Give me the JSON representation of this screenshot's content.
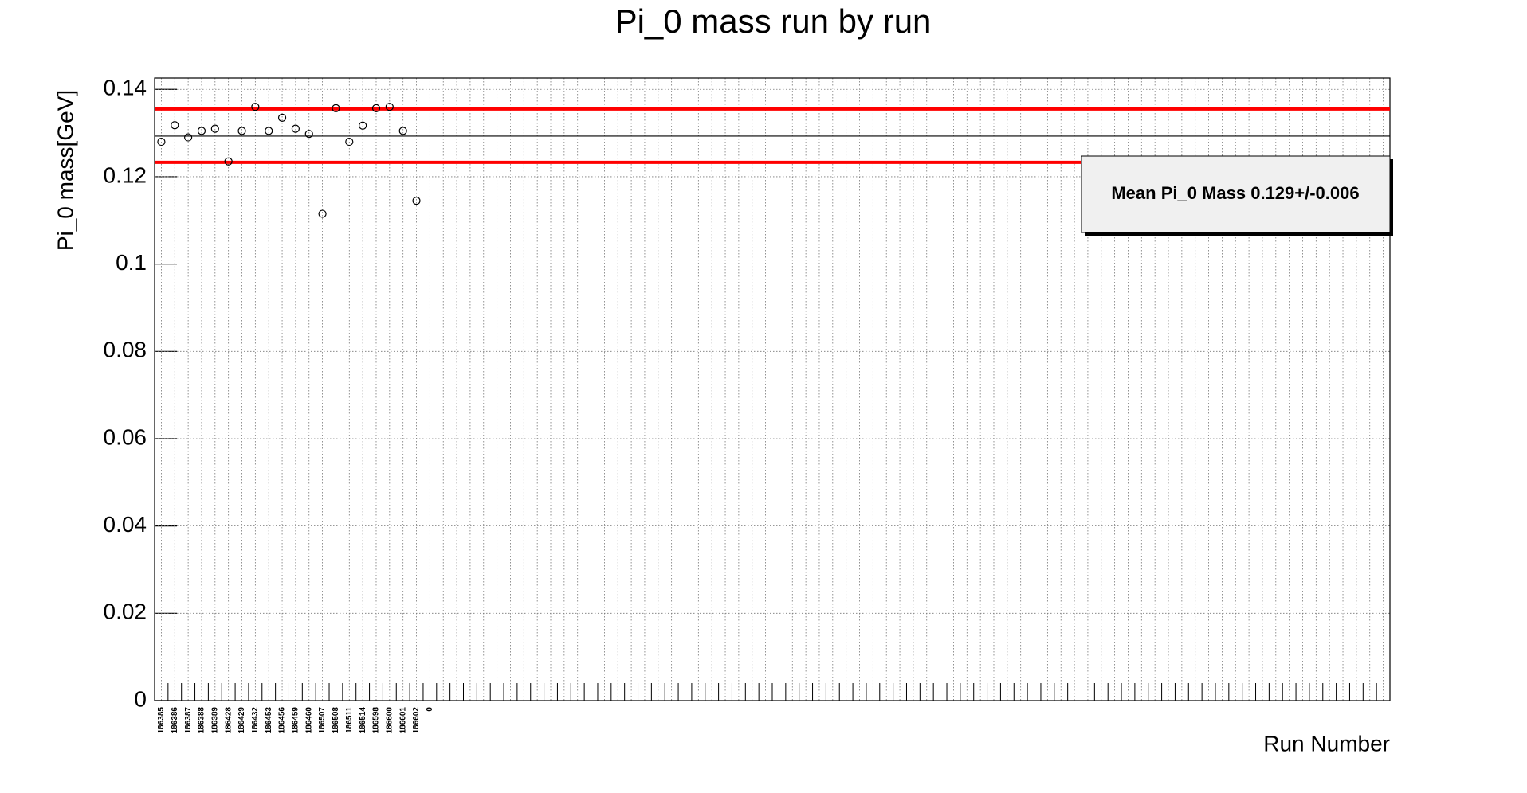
{
  "chart_data": {
    "type": "scatter",
    "title": "Pi_0 mass run by run",
    "x_label": "Run Number",
    "y_label": "Pi_0 mass[GeV]",
    "categories": [
      "186385",
      "186386",
      "186387",
      "186388",
      "186389",
      "186428",
      "186429",
      "186432",
      "186453",
      "186456",
      "186459",
      "186460",
      "186507",
      "186508",
      "186511",
      "186514",
      "186598",
      "186600",
      "186601",
      "186602",
      "0",
      null,
      null,
      null,
      null,
      null,
      null,
      null,
      null,
      null,
      null,
      null,
      null,
      null,
      null,
      null,
      null,
      null,
      null,
      null,
      null,
      null,
      null,
      null,
      null,
      null,
      null,
      null,
      null,
      null,
      null,
      null,
      null,
      null,
      null,
      null,
      null,
      null,
      null,
      null,
      null,
      null,
      null,
      null,
      null,
      null,
      null,
      null,
      null,
      null,
      null,
      null,
      null,
      null,
      null,
      null,
      null,
      null,
      null,
      null,
      null,
      null,
      null,
      null,
      null,
      null,
      null,
      null,
      null,
      null,
      null,
      null
    ],
    "values": [
      0.128,
      0.1318,
      0.129,
      0.1305,
      0.131,
      0.1235,
      0.1305,
      0.136,
      0.1305,
      0.1335,
      0.131,
      0.1298,
      0.1115,
      0.1357,
      0.128,
      0.1317,
      0.1357,
      0.136,
      0.1305,
      0.1145,
      null,
      null,
      null,
      null,
      null,
      null,
      null,
      null,
      null,
      null,
      null,
      null,
      null,
      null,
      null,
      null,
      null,
      null,
      null,
      null,
      null,
      null,
      null,
      null,
      null,
      null,
      null,
      null,
      null,
      null,
      null,
      null,
      null,
      null,
      null,
      null,
      null,
      null,
      null,
      null,
      null,
      null,
      null,
      null,
      null,
      null,
      null,
      null,
      null,
      null,
      null,
      null,
      null,
      null,
      null,
      null,
      null,
      null,
      null,
      null,
      null,
      null,
      null,
      null,
      null,
      null,
      null,
      null,
      null,
      null,
      null,
      null
    ],
    "color": "#000000",
    "ylim": [
      0,
      0.1426
    ],
    "yticks": [
      0,
      0.02,
      0.04,
      0.06,
      0.08,
      0.1,
      0.12,
      0.14
    ],
    "grid": true,
    "reference_lines": [
      {
        "value": 0.1293,
        "color": "#000000"
      },
      {
        "value": 0.1355,
        "color": "#ff0000"
      },
      {
        "value": 0.1233,
        "color": "#ff0000"
      }
    ],
    "legend_text": "Mean Pi_0 Mass 0.129+/-0.006",
    "legend_position": "upper right"
  }
}
